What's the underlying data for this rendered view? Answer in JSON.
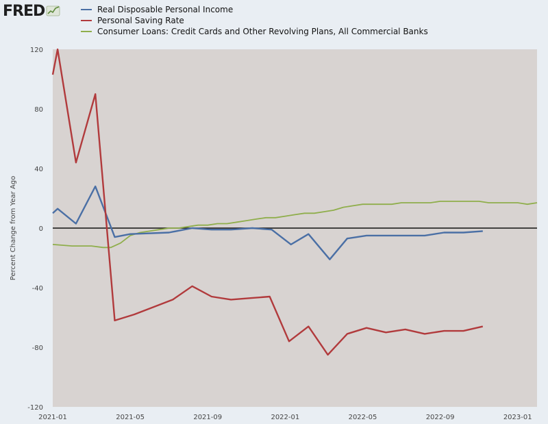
{
  "brand": {
    "name": "FRED",
    "logo_icon": "fred-trend-icon"
  },
  "chart_data": {
    "type": "line",
    "x_tick_labels": [
      "2021-01",
      "2021-05",
      "2021-09",
      "2022-01",
      "2022-05",
      "2022-09",
      "2023-01"
    ],
    "x_ticks_months": [
      0,
      4,
      8,
      12,
      16,
      20,
      24
    ],
    "xlim_months": [
      0,
      25
    ],
    "ylabel": "Percent Change from Year Ago",
    "ylim": [
      -120,
      120
    ],
    "yticks": [
      120,
      80,
      40,
      0,
      -40,
      -80,
      -120
    ],
    "zero_line": true,
    "background": "#d8d3d1",
    "legend_position": "top",
    "series": [
      {
        "name": "Real Disposable Personal Income",
        "color": "#4a6fa5",
        "points": [
          [
            0,
            10
          ],
          [
            0.25,
            13
          ],
          [
            1.2,
            3
          ],
          [
            2.2,
            28
          ],
          [
            3.2,
            -6
          ],
          [
            4,
            -4
          ],
          [
            6,
            -3
          ],
          [
            7.2,
            0
          ],
          [
            8.2,
            -1
          ],
          [
            9.2,
            -1
          ],
          [
            10.3,
            0
          ],
          [
            11.3,
            -1
          ],
          [
            12.3,
            -11
          ],
          [
            13.2,
            -4
          ],
          [
            14.3,
            -21
          ],
          [
            15.2,
            -7
          ],
          [
            16.2,
            -5
          ],
          [
            17.2,
            -5
          ],
          [
            18.2,
            -5
          ],
          [
            19.2,
            -5
          ],
          [
            20.2,
            -3
          ],
          [
            21.2,
            -3
          ],
          [
            22.2,
            -2
          ]
        ]
      },
      {
        "name": "Personal Saving Rate",
        "color": "#b13a3c",
        "points": [
          [
            0,
            103
          ],
          [
            0.25,
            120
          ],
          [
            1.2,
            44
          ],
          [
            2.2,
            90
          ],
          [
            3.2,
            -62
          ],
          [
            4.2,
            -58
          ],
          [
            5.2,
            -53
          ],
          [
            6.2,
            -48
          ],
          [
            7.2,
            -39
          ],
          [
            8.2,
            -46
          ],
          [
            9.2,
            -48
          ],
          [
            10.2,
            -47
          ],
          [
            11.2,
            -46
          ],
          [
            12.2,
            -76
          ],
          [
            13.2,
            -66
          ],
          [
            14.2,
            -85
          ],
          [
            15.2,
            -71
          ],
          [
            16.2,
            -67
          ],
          [
            17.2,
            -70
          ],
          [
            18.2,
            -68
          ],
          [
            19.2,
            -71
          ],
          [
            20.2,
            -69
          ],
          [
            21.2,
            -69
          ],
          [
            22.2,
            -66
          ]
        ]
      },
      {
        "name": "Consumer Loans: Credit Cards and Other Revolving Plans, All Commercial Banks",
        "color": "#8fae4b",
        "points": [
          [
            0,
            -11
          ],
          [
            1,
            -12
          ],
          [
            2,
            -12
          ],
          [
            2.6,
            -13
          ],
          [
            3,
            -13
          ],
          [
            3.5,
            -10
          ],
          [
            4,
            -5
          ],
          [
            4.5,
            -3
          ],
          [
            5,
            -2
          ],
          [
            5.5,
            -1
          ],
          [
            6,
            0
          ],
          [
            6.5,
            0
          ],
          [
            7,
            1
          ],
          [
            7.5,
            2
          ],
          [
            8,
            2
          ],
          [
            8.5,
            3
          ],
          [
            9,
            3
          ],
          [
            9.5,
            4
          ],
          [
            10,
            5
          ],
          [
            10.5,
            6
          ],
          [
            11,
            7
          ],
          [
            11.5,
            7
          ],
          [
            12,
            8
          ],
          [
            12.5,
            9
          ],
          [
            13,
            10
          ],
          [
            13.5,
            10
          ],
          [
            14,
            11
          ],
          [
            14.5,
            12
          ],
          [
            15,
            14
          ],
          [
            15.5,
            15
          ],
          [
            16,
            16
          ],
          [
            16.5,
            16
          ],
          [
            17,
            16
          ],
          [
            17.5,
            16
          ],
          [
            18,
            17
          ],
          [
            18.5,
            17
          ],
          [
            19,
            17
          ],
          [
            19.5,
            17
          ],
          [
            20,
            18
          ],
          [
            20.5,
            18
          ],
          [
            21,
            18
          ],
          [
            21.5,
            18
          ],
          [
            22,
            18
          ],
          [
            22.5,
            17
          ],
          [
            23,
            17
          ],
          [
            23.5,
            17
          ],
          [
            24,
            17
          ],
          [
            24.5,
            16
          ],
          [
            25,
            17
          ]
        ]
      }
    ]
  }
}
